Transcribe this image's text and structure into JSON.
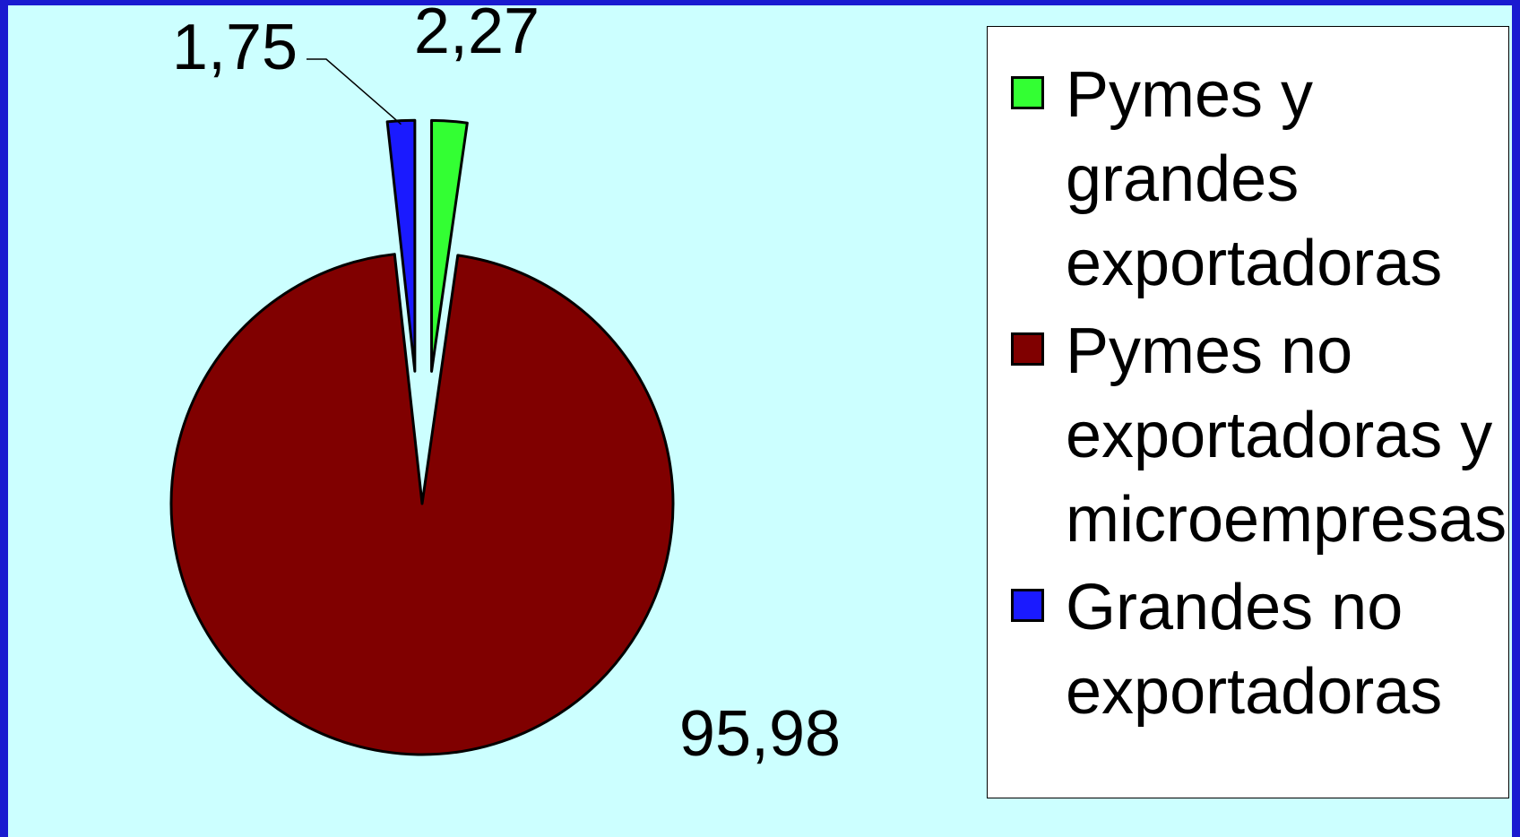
{
  "chart_data": {
    "type": "pie",
    "series": [
      {
        "name": "Pymes y grandes exportadoras",
        "color": "#33ff33",
        "values": [
          2.27
        ],
        "value_labels": [
          "2,27"
        ]
      },
      {
        "name": "Pymes no exportadoras y microempresas",
        "color": "#800000",
        "values": [
          95.98
        ],
        "value_labels": [
          "95,98"
        ]
      },
      {
        "name": "Grandes no exportadoras",
        "color": "#1a1aff",
        "values": [
          1.75
        ],
        "value_labels": [
          "1,75"
        ]
      }
    ],
    "legend": "right"
  }
}
